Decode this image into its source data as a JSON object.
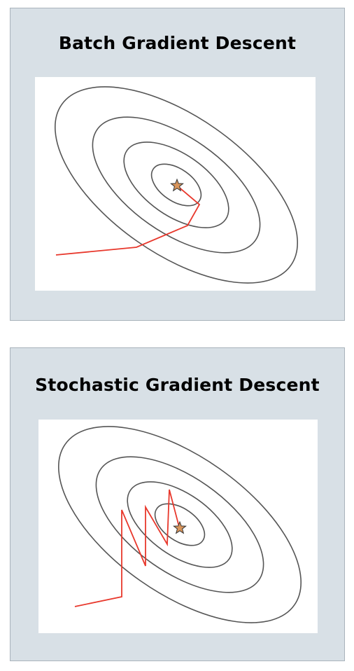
{
  "panels": [
    {
      "title": "Batch Gradient Descent",
      "path_color": "#e8382c",
      "star_color": "#d9955b",
      "contour_color": "#555555",
      "background_color": "#d8e0e6"
    },
    {
      "title": "Stochastic Gradient Descent",
      "path_color": "#e8382c",
      "star_color": "#d9955b",
      "contour_color": "#555555",
      "background_color": "#d8e0e6"
    }
  ]
}
